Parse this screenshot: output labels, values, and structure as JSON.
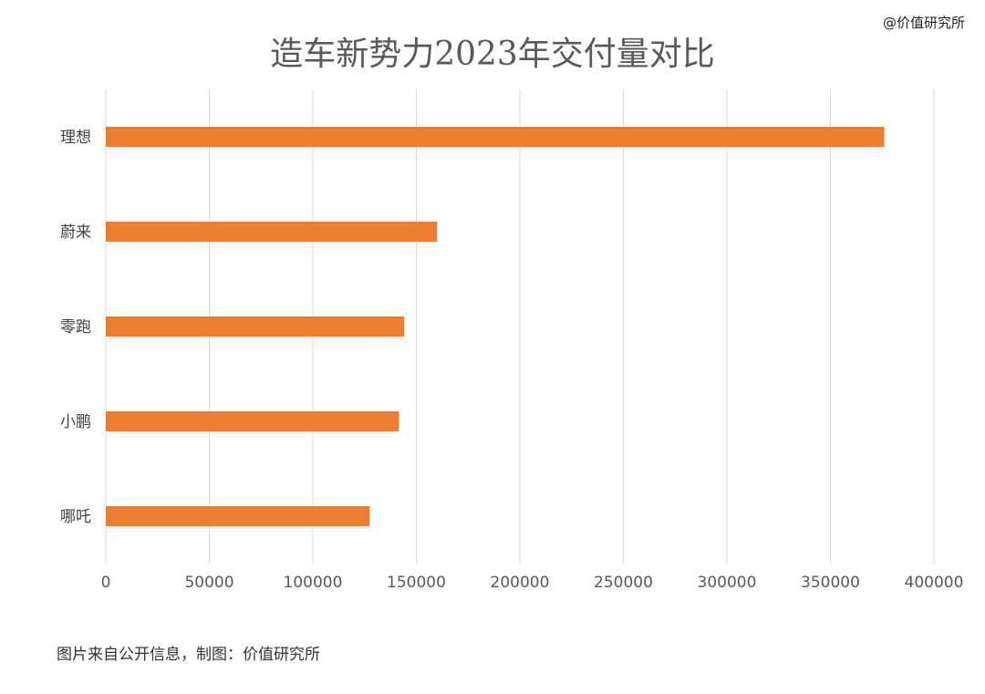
{
  "watermark": "@价值研究所",
  "source_note": "图片来自公开信息，制图：价值研究所",
  "colors": {
    "bar": "#ED7D31",
    "grid": "#D9D9D9",
    "tick_text": "#595959"
  },
  "chart_data": {
    "type": "bar",
    "orientation": "horizontal",
    "title": "造车新势力2023年交付量对比",
    "categories": [
      "理想",
      "蔚来",
      "零跑",
      "小鹏",
      "哪吒"
    ],
    "values": [
      376030,
      160038,
      144155,
      141601,
      127496
    ],
    "xlim": [
      0,
      400000
    ],
    "xticks": [
      "0",
      "50000",
      "100000",
      "150000",
      "200000",
      "250000",
      "300000",
      "350000",
      "400000"
    ],
    "grid": "vertical",
    "legend": "none"
  }
}
